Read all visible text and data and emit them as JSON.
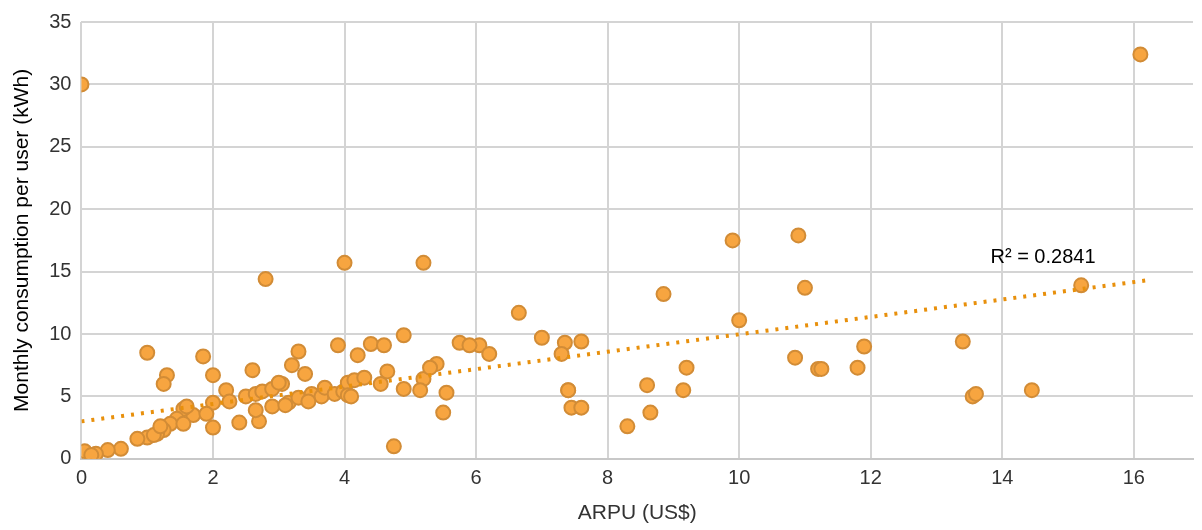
{
  "chart_data": {
    "type": "scatter",
    "xlabel": "ARPU (US$)",
    "ylabel": "Monthly consumption per user (kWh)",
    "xlim": [
      0,
      16.9
    ],
    "xticks": [
      0,
      2,
      4,
      6,
      8,
      10,
      12,
      14,
      16
    ],
    "ylim": [
      0,
      35
    ],
    "yticks": [
      0,
      5,
      10,
      15,
      20,
      25,
      30,
      35
    ],
    "grid": true,
    "legend": false,
    "marker": "circle",
    "annotations": [
      "R² = 0.2841"
    ],
    "series": [
      {
        "color": "#f7a540",
        "x": [
          0,
          16.1,
          9.9,
          10.9,
          11.0,
          8.85,
          15.2,
          2.8,
          4.0,
          5.2,
          10.0,
          6.65,
          7.0,
          7.35,
          7.6,
          7.3,
          6.05,
          5.75,
          5.9,
          6.2,
          4.9,
          4.4,
          4.6,
          3.9,
          13.4,
          11.9,
          1.0,
          1.85,
          3.3,
          4.2,
          10.85,
          11.2,
          11.25,
          11.8,
          9.2,
          3.2,
          2.6,
          2.0,
          1.3,
          1.25,
          3.4,
          3.05,
          5.2,
          5.4,
          5.3,
          8.6,
          9.15,
          7.4,
          7.45,
          7.4,
          7.6,
          8.65,
          8.3,
          13.55,
          13.6,
          14.45,
          5.5,
          5.55,
          5.15,
          4.9,
          4.75,
          2.0,
          2.4,
          2.7,
          1.7,
          1.55,
          1.45,
          1.35,
          1.25,
          1.15,
          1.0,
          0.85,
          0.6,
          0.4,
          0.22,
          0.05,
          0.15,
          2.2,
          2.25,
          2.5,
          2.65,
          2.75,
          2.9,
          2.9,
          3.0,
          2.65,
          3.15,
          3.3,
          3.5,
          3.65,
          3.7,
          3.85,
          3.98,
          4.05,
          4.05,
          4.15,
          4.3,
          3.45,
          4.55,
          4.65,
          1.6,
          1.1,
          1.2,
          1.55,
          3.1,
          2.0,
          4.1,
          1.9
        ],
        "values": [
          30.0,
          32.4,
          17.5,
          17.9,
          13.7,
          13.2,
          13.9,
          14.4,
          15.7,
          15.7,
          11.1,
          11.7,
          9.7,
          9.3,
          9.4,
          8.4,
          9.1,
          9.3,
          9.1,
          8.4,
          9.9,
          9.2,
          9.1,
          9.1,
          9.4,
          9.0,
          8.5,
          8.2,
          8.6,
          8.3,
          8.1,
          7.2,
          7.2,
          7.3,
          7.3,
          7.5,
          7.1,
          6.7,
          6.7,
          6.0,
          6.8,
          6.0,
          6.4,
          7.6,
          7.3,
          5.9,
          5.5,
          5.5,
          4.1,
          5.5,
          4.1,
          3.7,
          2.6,
          5.0,
          5.2,
          5.5,
          3.7,
          5.3,
          5.5,
          5.6,
          1.0,
          2.5,
          2.9,
          3.0,
          3.5,
          4.0,
          3.2,
          2.8,
          2.3,
          2.0,
          1.7,
          1.6,
          0.8,
          0.7,
          0.4,
          0.6,
          0.3,
          5.5,
          4.6,
          5.0,
          5.2,
          5.4,
          5.6,
          4.2,
          6.1,
          3.9,
          4.5,
          4.9,
          5.2,
          5.0,
          5.7,
          5.2,
          5.4,
          6.1,
          5.1,
          6.3,
          6.5,
          4.6,
          6.0,
          7.0,
          4.2,
          1.9,
          2.6,
          2.8,
          4.3,
          4.5,
          5.0,
          3.6
        ]
      },
      {
        "type": "line",
        "color": "#e8900c",
        "line_style": "dotted",
        "marker": "none",
        "x": [
          0,
          16.2
        ],
        "values": [
          3.0,
          14.3
        ]
      }
    ]
  }
}
